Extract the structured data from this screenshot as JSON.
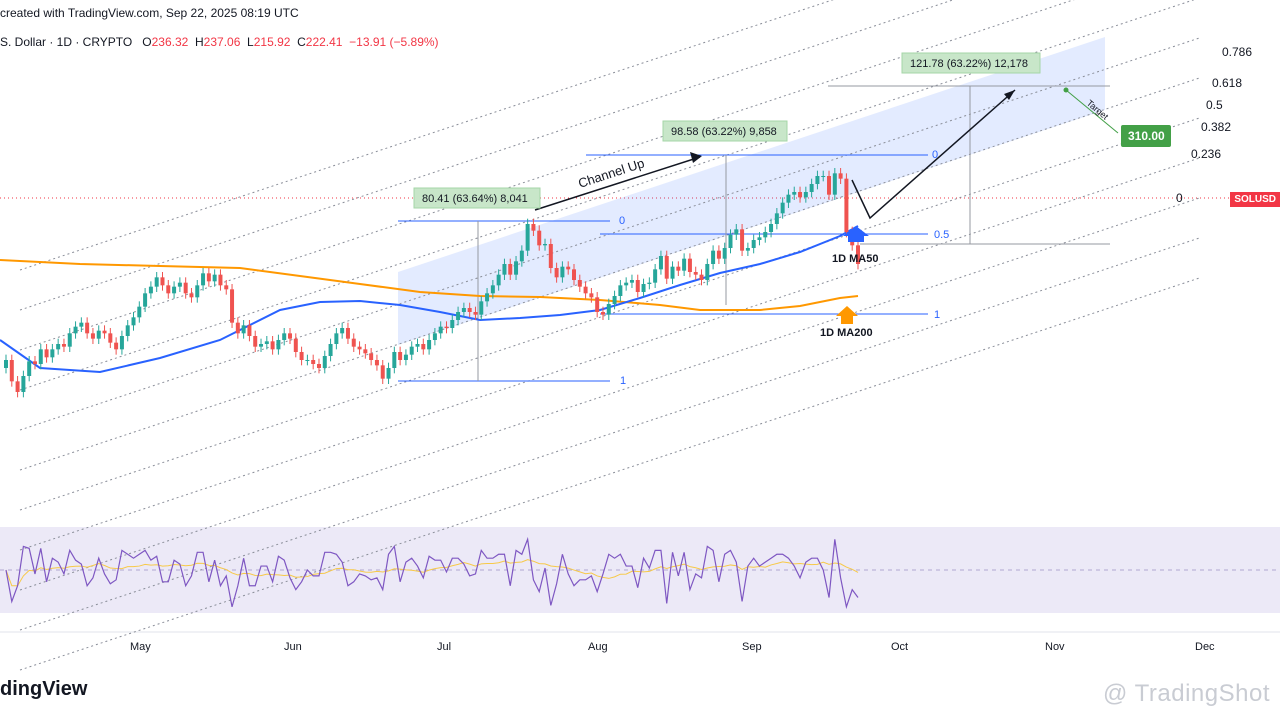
{
  "header": {
    "created": "created with TradingView.com, Sep 22, 2025 08:19 UTC",
    "symbol": "S. Dollar · 1D · CRYPTO",
    "o_label": "O",
    "o": "236.32",
    "h_label": "H",
    "h": "237.06",
    "l_label": "L",
    "l": "215.92",
    "c_label": "C",
    "c": "222.41",
    "change": "−13.91 (−5.89%)"
  },
  "price_tag": "SOLUSD",
  "brand": "dingView",
  "watermark": "@ TradingShot",
  "chart_data": {
    "type": "candlestick",
    "x_ticks": [
      "May",
      "Jun",
      "Jul",
      "Aug",
      "Sep",
      "Oct",
      "Nov",
      "Dec"
    ],
    "fib_levels": [
      "0.786",
      "0.618",
      "0.5",
      "0.382",
      "0.236",
      "0"
    ],
    "annotations": {
      "channel": "Channel Up",
      "move1": "80.41 (63.64%) 8,041",
      "move2": "98.58 (63.22%) 9,858",
      "move3": "121.78 (63.22%) 12,178",
      "target_label": "Target",
      "target_value": "310.00",
      "ma50": "1D MA50",
      "ma200": "1D MA200",
      "fib1_0": "0",
      "fib1_1": "1",
      "fib2_0": "0",
      "fib2_half": "0.5",
      "fib2_1": "1"
    },
    "colors": {
      "up": "#26a69a",
      "down": "#ef5350",
      "ma50": "#2962ff",
      "ma200": "#ff9800",
      "channel": "#2962ff",
      "rsi": "#7e57c2",
      "rsi_ma": "#f7c948",
      "target": "#43a047"
    },
    "close_series": [
      150,
      134,
      126,
      138,
      149,
      147,
      158,
      152,
      158,
      162,
      160,
      170,
      175,
      178,
      170,
      166,
      172,
      170,
      163,
      158,
      168,
      176,
      182,
      190,
      200,
      205,
      212,
      206,
      200,
      205,
      208,
      200,
      197,
      206,
      215,
      209,
      214,
      206,
      203,
      178,
      170,
      176,
      168,
      160,
      162,
      164,
      158,
      165,
      170,
      166,
      156,
      150,
      150,
      147,
      144,
      153,
      162,
      170,
      174,
      166,
      160,
      158,
      155,
      150,
      146,
      136,
      144,
      156,
      150,
      154,
      160,
      162,
      158,
      165,
      170,
      175,
      174,
      180,
      186,
      189,
      186,
      184,
      194,
      200,
      206,
      214,
      222,
      214,
      224,
      232,
      252,
      247,
      236,
      237,
      219,
      212,
      220,
      218,
      210,
      205,
      200,
      197,
      186,
      184,
      192,
      198,
      206,
      208,
      210,
      201,
      207,
      208,
      218,
      228,
      211,
      220,
      217,
      226,
      216,
      214,
      210,
      222,
      232,
      226,
      234,
      244,
      248,
      232,
      234,
      240,
      242,
      246,
      252,
      260,
      268,
      274,
      276,
      272,
      276,
      282,
      288,
      288,
      274,
      290,
      286,
      246,
      236,
      222
    ]
  }
}
